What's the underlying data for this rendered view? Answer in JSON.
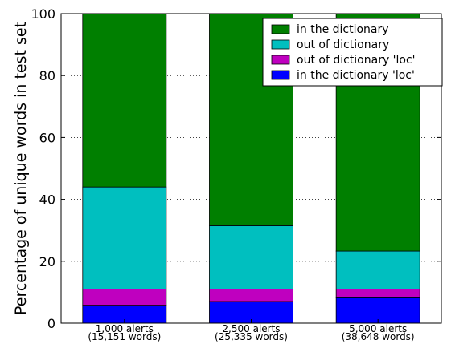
{
  "chart_data": {
    "type": "bar",
    "stacked": true,
    "categories": [
      [
        "1,000 alerts",
        "(15,151 words)"
      ],
      [
        "2,500 alerts",
        "(25,335 words)"
      ],
      [
        "5,000 alerts",
        "(38,648 words)"
      ]
    ],
    "series": [
      {
        "name": "in the dictionary 'loc'",
        "color": "#0000ff",
        "values": [
          5.8,
          7.0,
          8.2
        ]
      },
      {
        "name": "out of dictionary 'loc'",
        "color": "#bf00bf",
        "values": [
          5.2,
          4.0,
          2.8
        ]
      },
      {
        "name": "out of dictionary",
        "color": "#00bfbf",
        "values": [
          33.0,
          20.5,
          12.3
        ]
      },
      {
        "name": "in the dictionary",
        "color": "#007f00",
        "values": [
          56.0,
          68.5,
          76.7
        ]
      }
    ],
    "legend_order": [
      "in the dictionary",
      "out of dictionary",
      "out of dictionary 'loc'",
      "in the dictionary 'loc'"
    ],
    "legend_position": "top-right",
    "ylabel": "Percentage of unique words in test set",
    "xlabel": "",
    "ylim": [
      0,
      100
    ],
    "yticks": [
      0,
      20,
      40,
      60,
      80,
      100
    ],
    "grid": "horizontal-dotted"
  }
}
